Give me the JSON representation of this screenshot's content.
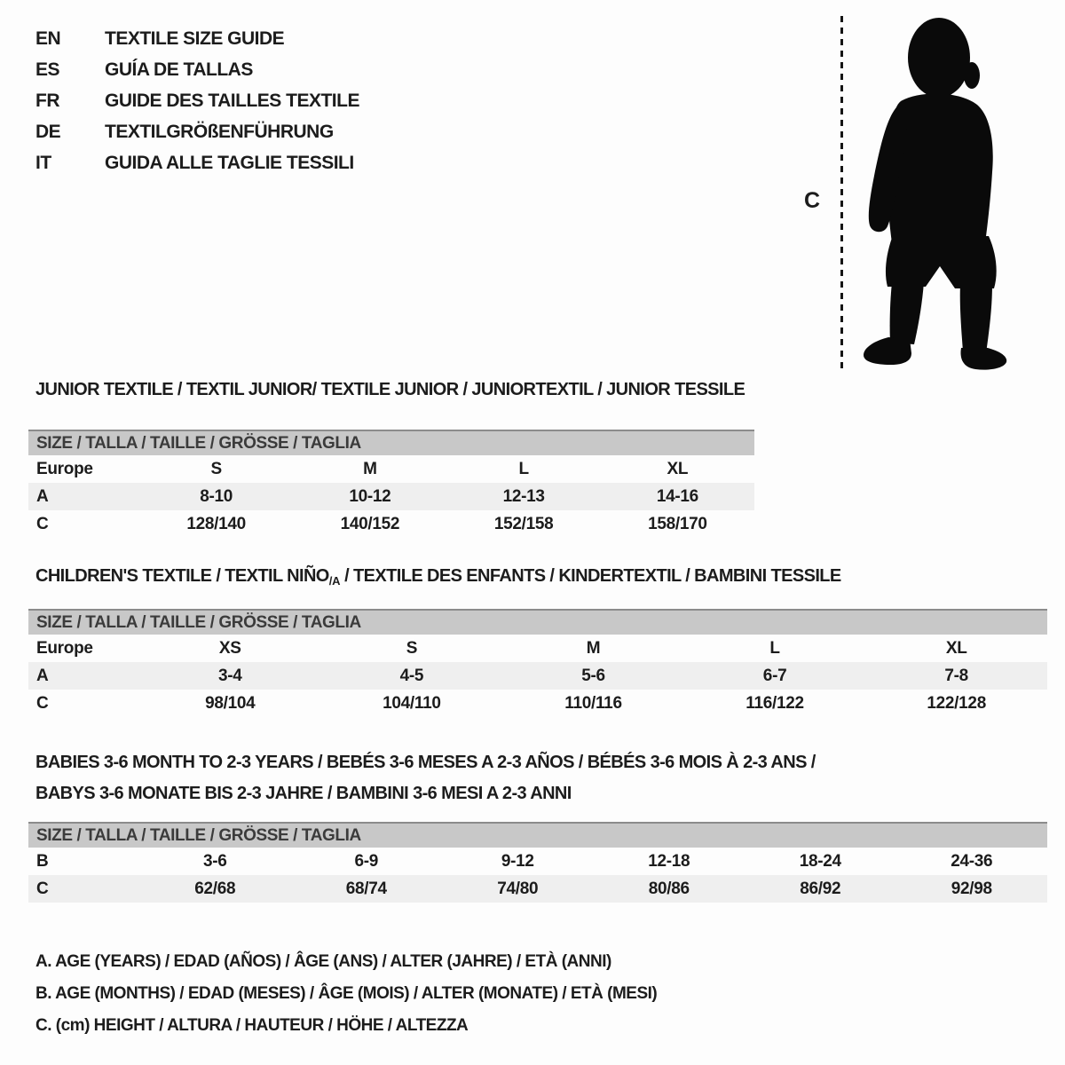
{
  "colors": {
    "page_background": "#fdfdfd",
    "text": "#1c1c1c",
    "table_header_bar": "#c8c8c8",
    "table_header_border": "#8c8c8c",
    "row_shaded": "#efefef",
    "silhouette": "#0a0a0a"
  },
  "header": {
    "languages": [
      {
        "code": "EN",
        "title": "TEXTILE SIZE GUIDE"
      },
      {
        "code": "ES",
        "title": "GUÍA DE TALLAS"
      },
      {
        "code": "FR",
        "title": "GUIDE DES TAILLES TEXTILE"
      },
      {
        "code": "DE",
        "title": "TEXTILGRÖßENFÜHRUNG"
      },
      {
        "code": "IT",
        "title": "GUIDA ALLE TAGLIE TESSILI"
      }
    ]
  },
  "figure": {
    "measure_label": "C",
    "silhouette": "toddler-silhouette"
  },
  "sections": {
    "junior": {
      "title": "JUNIOR TEXTILE / TEXTIL JUNIOR/ TEXTILE JUNIOR / JUNIORTEXTIL / JUNIOR TESSILE",
      "table": {
        "header": "SIZE / TALLA / TAILLE / GRÖSSE / TAGLIA",
        "rows": [
          {
            "label": "Europe",
            "cells": [
              "S",
              "M",
              "L",
              "XL"
            ],
            "shaded": false
          },
          {
            "label": "A",
            "cells": [
              "8-10",
              "10-12",
              "12-13",
              "14-16"
            ],
            "shaded": true
          },
          {
            "label": "C",
            "cells": [
              "128/140",
              "140/152",
              "152/158",
              "158/170"
            ],
            "shaded": false
          }
        ]
      }
    },
    "children": {
      "title_prefix": "CHILDREN'S TEXTILE / TEXTIL NIÑO",
      "title_sub": "/A",
      "title_suffix": " / TEXTILE DES ENFANTS / KINDERTEXTIL / BAMBINI TESSILE",
      "table": {
        "header": "SIZE / TALLA / TAILLE / GRÖSSE / TAGLIA",
        "rows": [
          {
            "label": "Europe",
            "cells": [
              "XS",
              "S",
              "M",
              "L",
              "XL"
            ],
            "shaded": false
          },
          {
            "label": "A",
            "cells": [
              "3-4",
              "4-5",
              "5-6",
              "6-7",
              "7-8"
            ],
            "shaded": true
          },
          {
            "label": "C",
            "cells": [
              "98/104",
              "104/110",
              "110/116",
              "116/122",
              "122/128"
            ],
            "shaded": false
          }
        ]
      }
    },
    "babies": {
      "title_line1": "BABIES 3-6 MONTH TO 2-3 YEARS / BEBÉS 3-6 MESES A 2-3 AÑOS / BÉBÉS 3-6 MOIS À 2-3 ANS /",
      "title_line2": "BABYS 3-6 MONATE BIS 2-3 JAHRE / BAMBINI 3-6 MESI A 2-3 ANNI",
      "table": {
        "header": "SIZE / TALLA / TAILLE / GRÖSSE / TAGLIA",
        "rows": [
          {
            "label": "B",
            "cells": [
              "3-6",
              "6-9",
              "9-12",
              "12-18",
              "18-24",
              "24-36"
            ],
            "shaded": false
          },
          {
            "label": "C",
            "cells": [
              "62/68",
              "68/74",
              "74/80",
              "80/86",
              "86/92",
              "92/98"
            ],
            "shaded": true
          }
        ]
      }
    }
  },
  "legend": {
    "lines": [
      "A. AGE (YEARS) / EDAD (AÑOS) / ÂGE (ANS) / ALTER (JAHRE) / ETÀ (ANNI)",
      "B. AGE (MONTHS) / EDAD (MESES) / ÂGE (MOIS) / ALTER (MONATE) / ETÀ (MESI)",
      "C. (cm) HEIGHT / ALTURA / HAUTEUR / HÖHE / ALTEZZA"
    ]
  }
}
